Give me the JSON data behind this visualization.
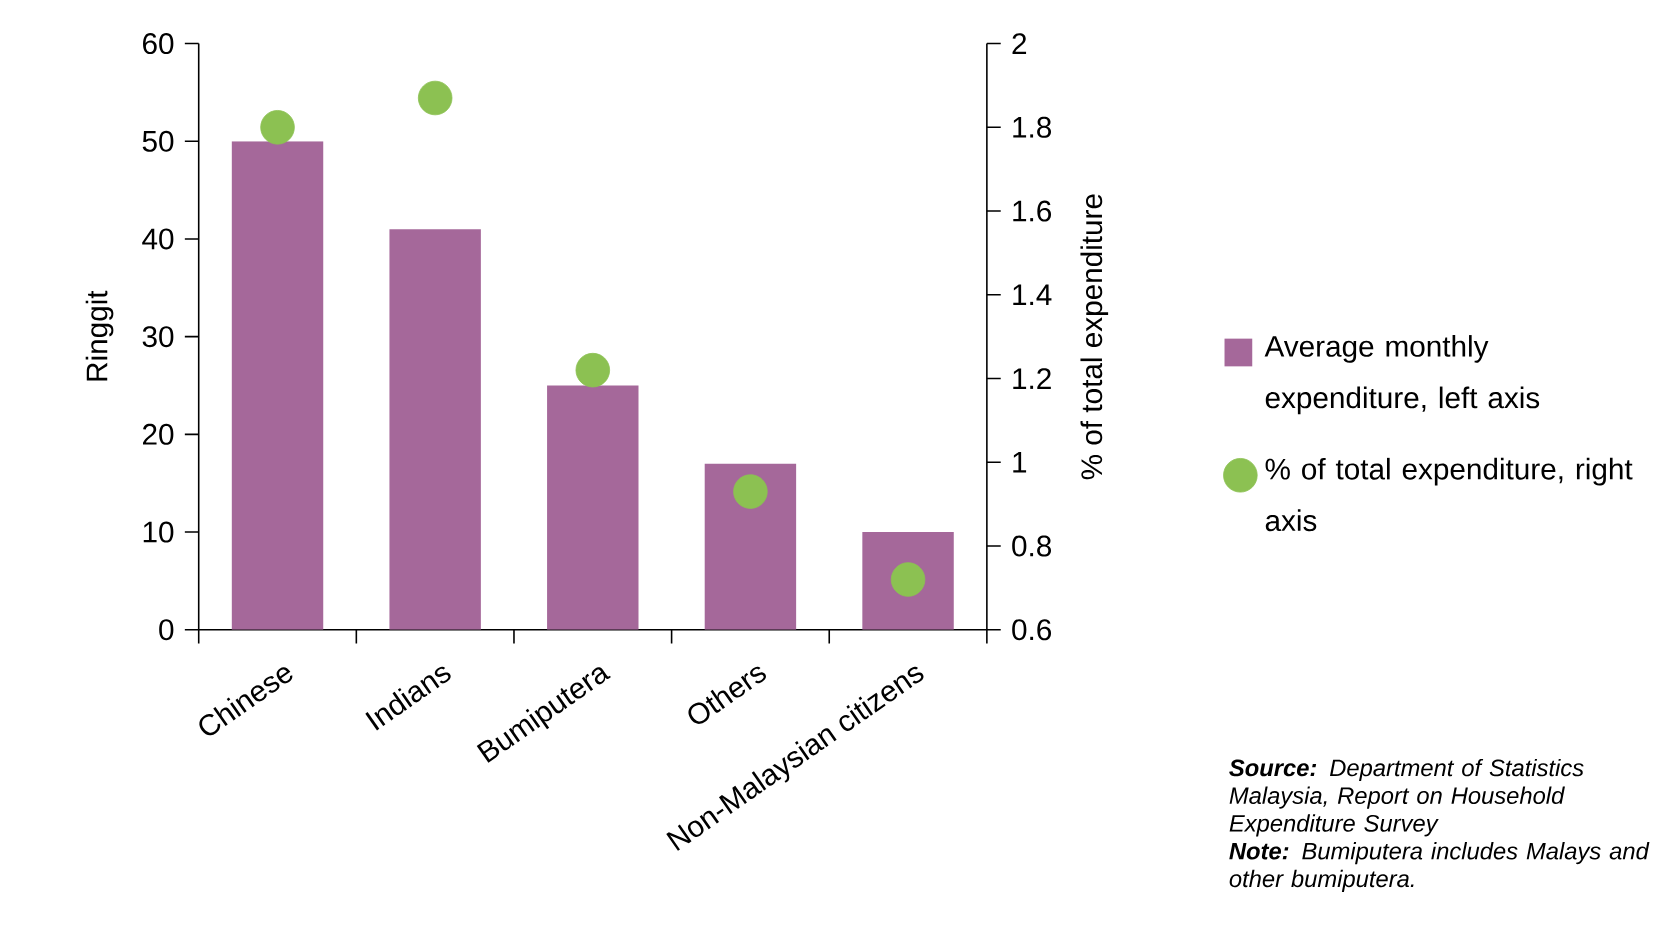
{
  "chart_data": {
    "type": "bar",
    "categories": [
      "Chinese",
      "Indians",
      "Bumiputera",
      "Others",
      "Non-Malaysian citizens"
    ],
    "series": [
      {
        "name": "Average monthly expenditure, left axis",
        "color": "#a5689a",
        "values": [
          50,
          41,
          25,
          17,
          10
        ]
      },
      {
        "name": "% of total expenditure, right axis",
        "type": "scatter",
        "axis": "y2",
        "marker": "circle",
        "color": "#8cc152",
        "values": [
          1.8,
          1.87,
          1.22,
          0.93,
          0.72
        ]
      }
    ],
    "ylabel": "Ringgit",
    "y2label": "% of total expenditure",
    "ylim": [
      0,
      60
    ],
    "yticks": [
      0,
      10,
      20,
      30,
      40,
      50,
      60
    ],
    "y2lim": [
      0.6,
      2
    ],
    "y2ticks": [
      0.6,
      0.8,
      1,
      1.2,
      1.4,
      1.6,
      1.8,
      2
    ],
    "legend": "right",
    "annotations": [
      "**Source:** Department of Statistics Malaysia, Report on Household Expenditure Survey",
      "**Note:** Bumiputera includes Malays and other bumiputera."
    ]
  }
}
